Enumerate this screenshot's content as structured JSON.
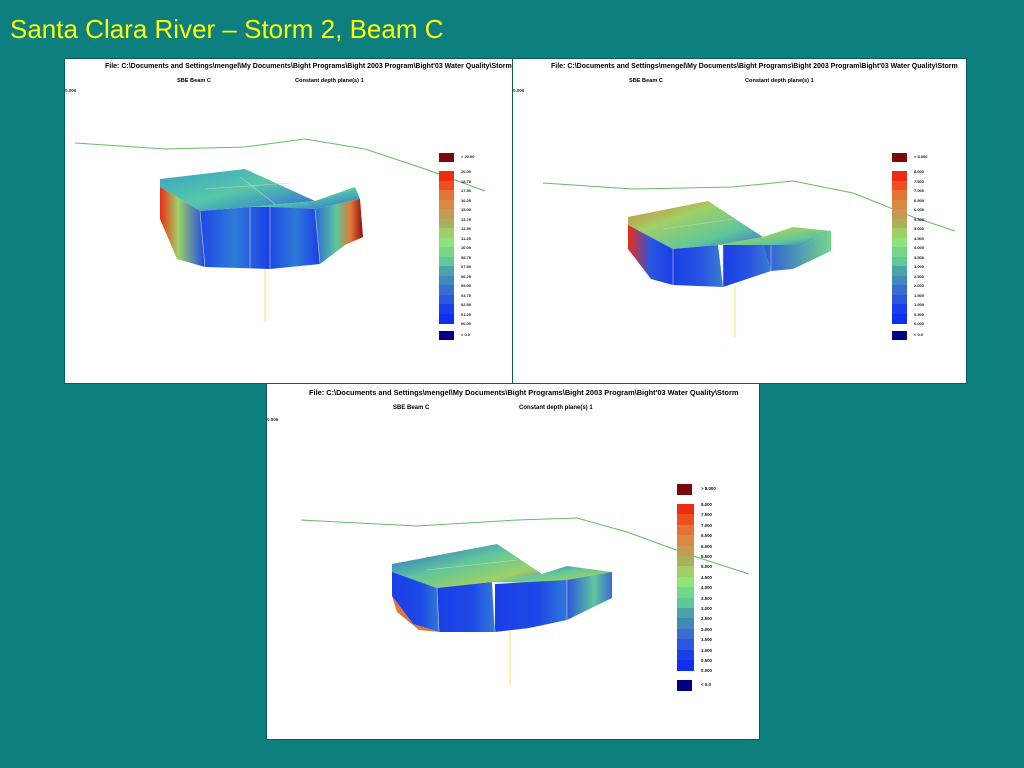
{
  "slide": {
    "title": "Santa Clara River – Storm 2, Beam C"
  },
  "panels": [
    {
      "file_line": "File:  C:\\Documents and Settings\\mengel\\My Documents\\Bight Programs\\Bight 2003 Program\\Bight'03 Water Quality\\Storm",
      "beam_label": "SBE Beam C",
      "depth_label": "Constant depth plane(s)  1",
      "corner_tag": "0.006",
      "legend": {
        "over_label": "> 20.00",
        "under_label": "< 0.0",
        "ticks": [
          "20.00",
          "18.75",
          "17.50",
          "16.25",
          "15.00",
          "13.75",
          "12.50",
          "11.25",
          "10.00",
          "08.75",
          "07.50",
          "06.25",
          "05.00",
          "03.75",
          "02.50",
          "01.25",
          "00.00"
        ]
      }
    },
    {
      "file_line": "File:  C:\\Documents and Settings\\mengel\\My Documents\\Bight Programs\\Bight 2003 Program\\Bight'03 Water Quality\\Storm",
      "beam_label": "SBE Beam C",
      "depth_label": "Constant depth plane(s)  1",
      "corner_tag": "0.006",
      "legend": {
        "over_label": "> 8.000",
        "under_label": "< 0.0",
        "ticks": [
          "8.000",
          "7.500",
          "7.000",
          "6.500",
          "6.000",
          "5.500",
          "5.000",
          "4.500",
          "4.000",
          "3.500",
          "3.000",
          "2.500",
          "2.000",
          "1.500",
          "1.000",
          "0.500",
          "0.000"
        ]
      }
    },
    {
      "file_line": "File:  C:\\Documents and Settings\\mengel\\My Documents\\Bight Programs\\Bight 2003 Program\\Bight'03 Water Quality\\Storm",
      "beam_label": "SBE Beam C",
      "depth_label": "Constant depth plane(s)  1",
      "corner_tag": "0.006",
      "legend": {
        "over_label": "> 8.000",
        "under_label": "< 0.0",
        "ticks": [
          "8.000",
          "7.500",
          "7.000",
          "6.500",
          "6.000",
          "5.500",
          "5.000",
          "4.500",
          "4.000",
          "3.500",
          "3.000",
          "2.500",
          "2.000",
          "1.500",
          "1.000",
          "0.500",
          "0.000"
        ]
      }
    }
  ],
  "colors": {
    "background": "#0d7f7f",
    "title": "#ffff00",
    "legend_over": "#7a0a0a",
    "legend_under": "#000080",
    "legend_scale": [
      "#ee2b14",
      "#ee4f1e",
      "#e27535",
      "#d88a45",
      "#c49a55",
      "#a8b05e",
      "#9fd065",
      "#8ee37a",
      "#74d68a",
      "#5fc79a",
      "#4aa3a6",
      "#3f88b8",
      "#3a6cd2",
      "#2a56e0",
      "#1a3ee8",
      "#0f2ef0",
      "#0a20f5"
    ],
    "coastline": "#66bb66",
    "mooring_line": "#e8e860",
    "grid_line": "#cccccc"
  },
  "icons": [
    "color-legend",
    "3d-volume-render"
  ]
}
